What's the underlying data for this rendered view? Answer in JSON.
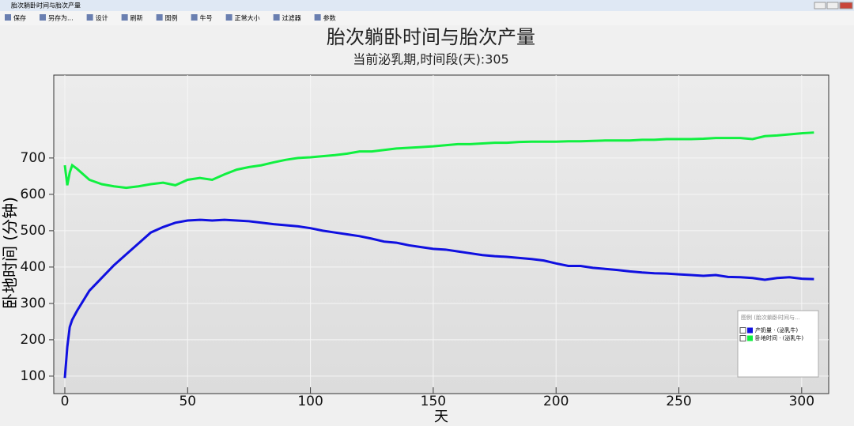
{
  "window": {
    "title": "胎次躺卧时间与胎次产量"
  },
  "toolbar": [
    "保存",
    "另存为...",
    "设计",
    "刷新",
    "图例",
    "牛号",
    "正常大小",
    "过滤器",
    "参数"
  ],
  "legend_panel": {
    "title": "图例 (胎次躺卧时间与..."
  },
  "chart_data": {
    "type": "line",
    "title": "胎次躺卧时间与胎次产量",
    "subtitle": "当前泌乳期,时间段(天):305",
    "x_label": "天",
    "y_label": "卧地时间 (分钟)",
    "x": [
      0,
      1,
      2,
      3,
      5,
      10,
      15,
      20,
      25,
      30,
      35,
      40,
      45,
      50,
      55,
      60,
      65,
      70,
      75,
      80,
      85,
      90,
      95,
      100,
      105,
      110,
      115,
      120,
      125,
      130,
      135,
      140,
      145,
      150,
      155,
      160,
      165,
      170,
      175,
      180,
      185,
      190,
      195,
      200,
      205,
      210,
      215,
      220,
      225,
      230,
      235,
      240,
      245,
      250,
      255,
      260,
      265,
      270,
      275,
      280,
      285,
      290,
      295,
      300,
      305
    ],
    "series": [
      {
        "name": "产奶量 · (泌乳牛)",
        "color": "#1010e0",
        "values": [
          95,
          180,
          235,
          255,
          280,
          335,
          370,
          405,
          435,
          465,
          495,
          510,
          522,
          528,
          530,
          528,
          530,
          528,
          526,
          522,
          518,
          515,
          512,
          507,
          500,
          495,
          490,
          485,
          478,
          470,
          467,
          460,
          455,
          450,
          448,
          443,
          438,
          433,
          430,
          428,
          425,
          422,
          418,
          410,
          403,
          403,
          398,
          395,
          392,
          388,
          385,
          383,
          382,
          380,
          378,
          376,
          378,
          373,
          372,
          370,
          365,
          370,
          372,
          368,
          367
        ]
      },
      {
        "name": "卧地时间 · (泌乳牛)",
        "color": "#10f040",
        "values": [
          680,
          625,
          660,
          680,
          670,
          640,
          628,
          622,
          618,
          622,
          628,
          632,
          625,
          640,
          645,
          640,
          655,
          668,
          675,
          680,
          688,
          695,
          700,
          702,
          705,
          708,
          712,
          718,
          718,
          722,
          726,
          728,
          730,
          732,
          735,
          738,
          738,
          740,
          742,
          742,
          744,
          745,
          745,
          745,
          746,
          746,
          747,
          748,
          748,
          748,
          750,
          750,
          752,
          752,
          752,
          753,
          755,
          755,
          755,
          752,
          760,
          762,
          765,
          768,
          770
        ]
      }
    ],
    "xlim": [
      -4.5,
      311
    ],
    "ylim": [
      52,
      928
    ],
    "xticks": [
      0,
      50,
      100,
      150,
      200,
      250,
      300
    ],
    "yticks": [
      100,
      200,
      300,
      400,
      500,
      600,
      700
    ],
    "grid": true
  }
}
